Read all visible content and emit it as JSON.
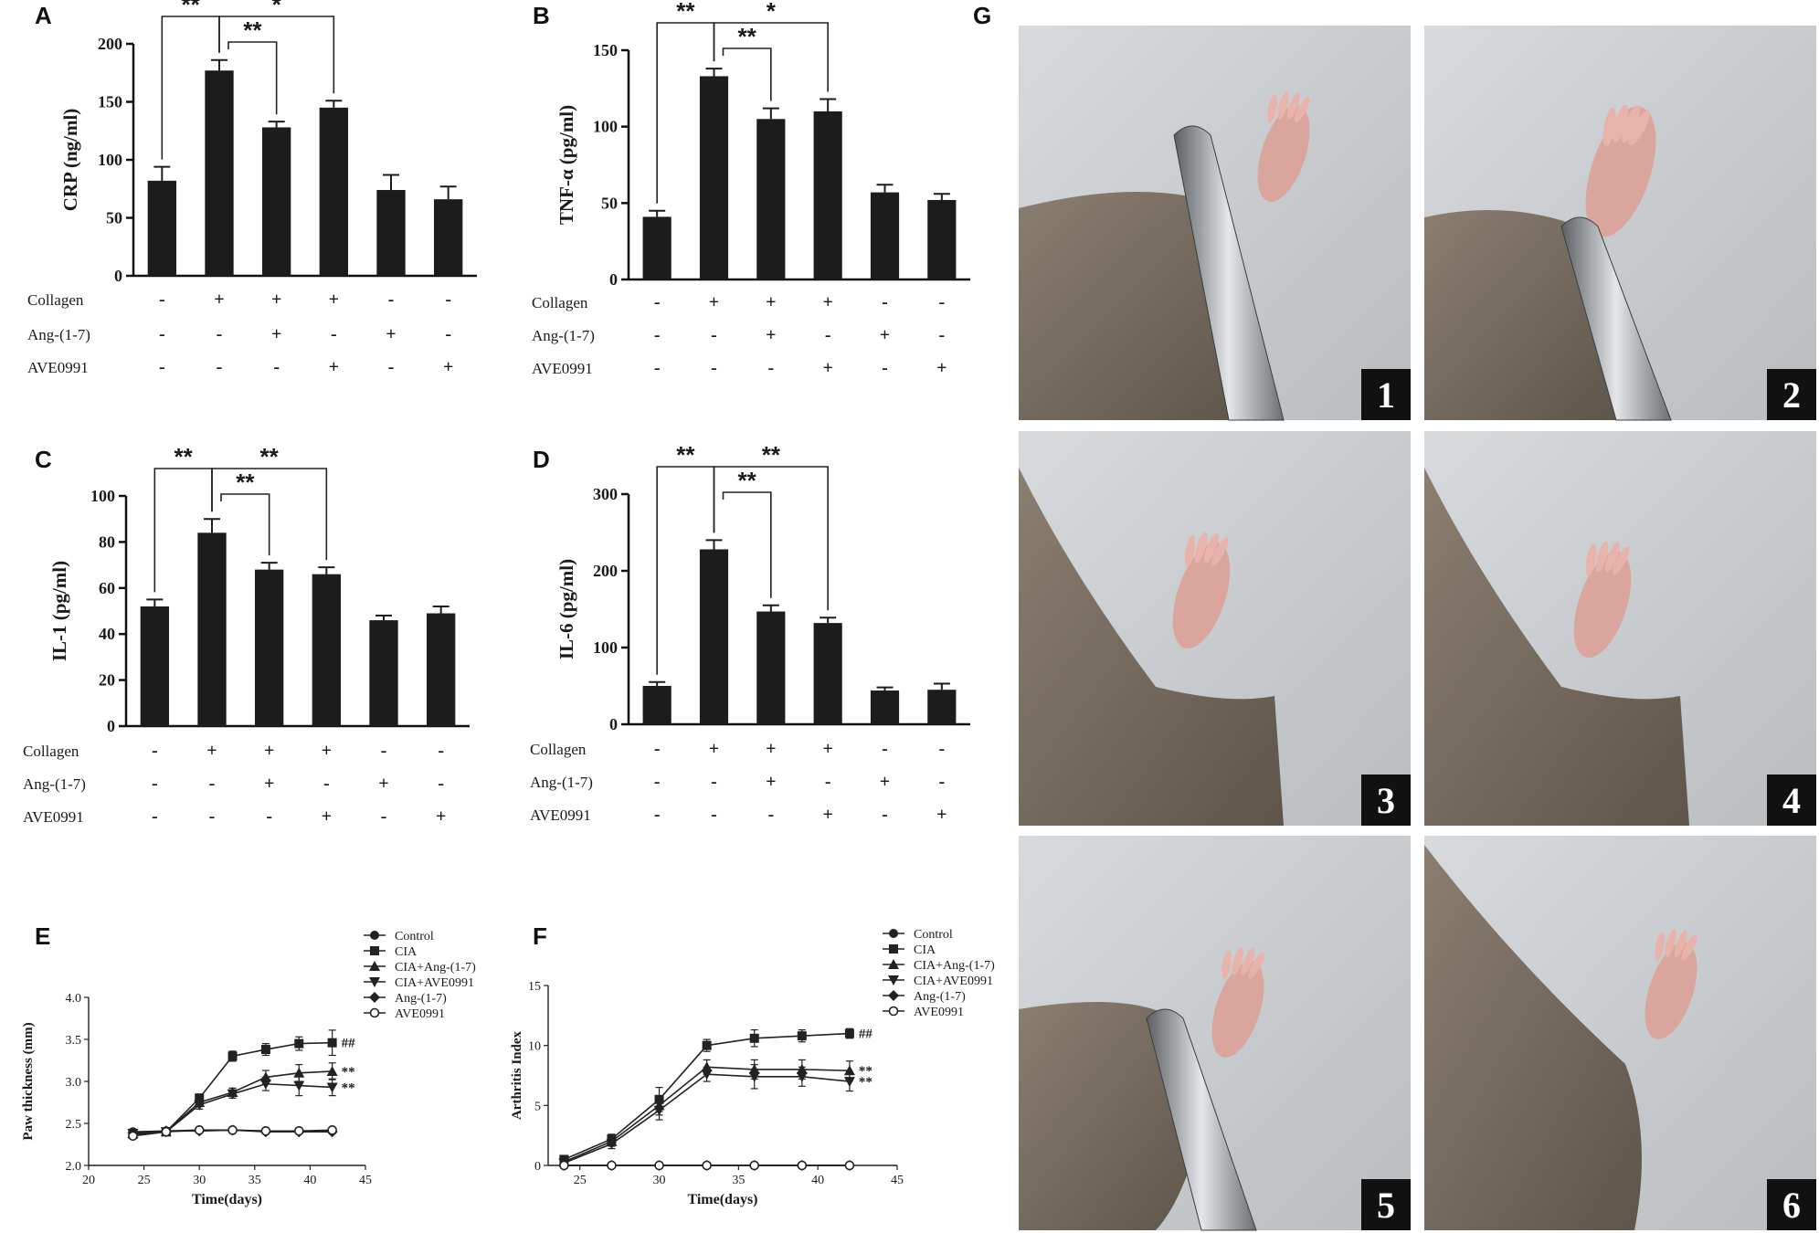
{
  "panel_letters": [
    "A",
    "B",
    "C",
    "D",
    "E",
    "F",
    "G"
  ],
  "treatment_rows": [
    {
      "label": "Collagen",
      "signs": [
        "-",
        "+",
        "+",
        "+",
        "-",
        "-"
      ]
    },
    {
      "label": "Ang-(1-7)",
      "signs": [
        "-",
        "-",
        "+",
        "-",
        "+",
        "-"
      ]
    },
    {
      "label": "AVE0991",
      "signs": [
        "-",
        "-",
        "-",
        "+",
        "-",
        "+"
      ]
    }
  ],
  "chart_data": [
    {
      "panel": "A",
      "type": "bar",
      "ylabel": "CRP (ng/ml)",
      "ylim": [
        0,
        200
      ],
      "yticks": [
        0,
        50,
        100,
        150,
        200
      ],
      "values": [
        82,
        177,
        128,
        145,
        74,
        66
      ],
      "errors": [
        12,
        9,
        5,
        6,
        13,
        11
      ],
      "significance": [
        {
          "from": 0,
          "to": 1,
          "label": "**",
          "level": 0
        },
        {
          "from": 1,
          "to": 2,
          "label": "**",
          "level": 1
        },
        {
          "from": 1,
          "to": 3,
          "label": "*",
          "level": 0
        }
      ]
    },
    {
      "panel": "B",
      "type": "bar",
      "ylabel": "TNF-α (pg/ml)",
      "ylim": [
        0,
        150
      ],
      "yticks": [
        0,
        50,
        100,
        150
      ],
      "values": [
        41,
        133,
        105,
        110,
        57,
        52
      ],
      "errors": [
        4,
        5,
        7,
        8,
        5,
        4
      ],
      "significance": [
        {
          "from": 0,
          "to": 1,
          "label": "**",
          "level": 0
        },
        {
          "from": 1,
          "to": 2,
          "label": "**",
          "level": 1
        },
        {
          "from": 1,
          "to": 3,
          "label": "*",
          "level": 0
        }
      ]
    },
    {
      "panel": "C",
      "type": "bar",
      "ylabel": "IL-1 (pg/ml)",
      "ylim": [
        0,
        100
      ],
      "yticks": [
        0,
        20,
        40,
        60,
        80,
        100
      ],
      "values": [
        52,
        84,
        68,
        66,
        46,
        49
      ],
      "errors": [
        3,
        6,
        3,
        3,
        2,
        3
      ],
      "significance": [
        {
          "from": 0,
          "to": 1,
          "label": "**",
          "level": 0
        },
        {
          "from": 1,
          "to": 2,
          "label": "**",
          "level": 1
        },
        {
          "from": 1,
          "to": 3,
          "label": "**",
          "level": 0
        }
      ]
    },
    {
      "panel": "D",
      "type": "bar",
      "ylabel": "IL-6 (pg/ml)",
      "ylim": [
        0,
        300
      ],
      "yticks": [
        0,
        100,
        200,
        300
      ],
      "values": [
        50,
        228,
        147,
        132,
        44,
        45
      ],
      "errors": [
        5,
        12,
        8,
        7,
        4,
        8
      ],
      "significance": [
        {
          "from": 0,
          "to": 1,
          "label": "**",
          "level": 0
        },
        {
          "from": 1,
          "to": 2,
          "label": "**",
          "level": 1
        },
        {
          "from": 1,
          "to": 3,
          "label": "**",
          "level": 0
        }
      ]
    },
    {
      "panel": "E",
      "type": "line",
      "xlabel": "Time(days)",
      "ylabel": "Paw thickness (mm)",
      "xlim": [
        20,
        45
      ],
      "ylim": [
        2.0,
        4.0
      ],
      "xticks": [
        20,
        25,
        30,
        35,
        40,
        45
      ],
      "yticks": [
        "2.0",
        "2.5",
        "3.0",
        "3.5",
        "4.0"
      ],
      "x": [
        24,
        27,
        30,
        33,
        36,
        39,
        42
      ],
      "series": [
        {
          "name": "Control",
          "marker": "circle",
          "values": [
            2.4,
            2.41,
            2.42,
            2.42,
            2.41,
            2.41,
            2.41
          ],
          "errors": [
            0.02,
            0.02,
            0.02,
            0.02,
            0.02,
            0.02,
            0.02
          ]
        },
        {
          "name": "CIA",
          "marker": "square",
          "values": [
            2.37,
            2.4,
            2.8,
            3.3,
            3.38,
            3.45,
            3.46
          ],
          "errors": [
            0.03,
            0.03,
            0.05,
            0.06,
            0.07,
            0.08,
            0.15
          ]
        },
        {
          "name": "CIA+Ang-(1-7)",
          "marker": "triangle-up",
          "values": [
            2.38,
            2.4,
            2.75,
            2.87,
            3.05,
            3.1,
            3.12
          ],
          "errors": [
            0.03,
            0.03,
            0.05,
            0.05,
            0.08,
            0.1,
            0.1
          ]
        },
        {
          "name": "CIA+AVE0991",
          "marker": "triangle-down",
          "values": [
            2.38,
            2.4,
            2.72,
            2.85,
            2.97,
            2.95,
            2.93
          ],
          "errors": [
            0.03,
            0.03,
            0.05,
            0.05,
            0.08,
            0.12,
            0.1
          ]
        },
        {
          "name": "Ang-(1-7)",
          "marker": "diamond",
          "values": [
            2.39,
            2.41,
            2.41,
            2.42,
            2.4,
            2.4,
            2.4
          ],
          "errors": [
            0.02,
            0.02,
            0.02,
            0.02,
            0.02,
            0.02,
            0.02
          ]
        },
        {
          "name": "AVE0991",
          "marker": "open-circle",
          "values": [
            2.35,
            2.4,
            2.42,
            2.42,
            2.41,
            2.41,
            2.42
          ],
          "errors": [
            0.02,
            0.02,
            0.02,
            0.02,
            0.02,
            0.02,
            0.02
          ]
        }
      ],
      "annotations": [
        "##",
        "**",
        "**"
      ]
    },
    {
      "panel": "F",
      "type": "line",
      "xlabel": "Time(days)",
      "ylabel": "Arthritis Index",
      "xlim": [
        23,
        45
      ],
      "ylim": [
        0,
        15
      ],
      "xticks": [
        25,
        30,
        35,
        40,
        45
      ],
      "yticks": [
        0,
        5,
        10,
        15
      ],
      "x": [
        24,
        27,
        30,
        33,
        36,
        39,
        42
      ],
      "series": [
        {
          "name": "Control",
          "marker": "circle",
          "values": [
            0,
            0,
            0,
            0,
            0,
            0,
            0
          ],
          "errors": [
            0,
            0,
            0,
            0,
            0,
            0,
            0
          ]
        },
        {
          "name": "CIA",
          "marker": "square",
          "values": [
            0.5,
            2.2,
            5.5,
            10.0,
            10.6,
            10.8,
            11.0
          ],
          "errors": [
            0.2,
            0.4,
            1.0,
            0.5,
            0.7,
            0.5,
            0.4
          ]
        },
        {
          "name": "CIA+Ang-(1-7)",
          "marker": "triangle-up",
          "values": [
            0.3,
            2.0,
            5.0,
            8.2,
            8.0,
            8.0,
            7.9
          ],
          "errors": [
            0.2,
            0.4,
            0.8,
            0.6,
            0.8,
            0.8,
            0.8
          ]
        },
        {
          "name": "CIA+AVE0991",
          "marker": "triangle-down",
          "values": [
            0.2,
            1.8,
            4.6,
            7.6,
            7.4,
            7.4,
            7.0
          ],
          "errors": [
            0.2,
            0.4,
            0.8,
            0.6,
            1.0,
            0.8,
            0.8
          ]
        },
        {
          "name": "Ang-(1-7)",
          "marker": "diamond",
          "values": [
            0,
            0,
            0,
            0,
            0,
            0,
            0
          ],
          "errors": [
            0,
            0,
            0,
            0,
            0,
            0,
            0
          ]
        },
        {
          "name": "AVE0991",
          "marker": "open-circle",
          "values": [
            0,
            0,
            0,
            0,
            0,
            0,
            0
          ],
          "errors": [
            0,
            0,
            0,
            0,
            0,
            0,
            0
          ]
        }
      ],
      "annotations": [
        "##",
        "**",
        "**"
      ]
    }
  ],
  "photos": {
    "panel": "G",
    "labels": [
      "1",
      "2",
      "3",
      "4",
      "5",
      "6"
    ]
  }
}
